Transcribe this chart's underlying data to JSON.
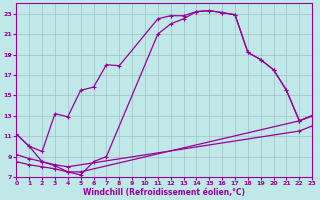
{
  "bg_color": "#c0e8e8",
  "line_color": "#990099",
  "grid_color": "#a0c0c0",
  "xlabel": "Windchill (Refroidissement éolien,°C)",
  "xlim": [
    0,
    23
  ],
  "ylim": [
    7,
    24
  ],
  "yticks": [
    7,
    9,
    11,
    13,
    15,
    17,
    19,
    21,
    23
  ],
  "xticks": [
    0,
    1,
    2,
    3,
    4,
    5,
    6,
    7,
    8,
    9,
    10,
    11,
    12,
    13,
    14,
    15,
    16,
    17,
    18,
    19,
    20,
    21,
    22,
    23
  ],
  "curve1_x": [
    0,
    1,
    2,
    3,
    4,
    5,
    6,
    7,
    8,
    11,
    12,
    13,
    14,
    15,
    16,
    17,
    18,
    19,
    20,
    21,
    22,
    23
  ],
  "curve1_y": [
    11.2,
    10.0,
    9.5,
    13.2,
    12.9,
    15.5,
    15.8,
    18.0,
    17.9,
    22.5,
    22.8,
    22.8,
    23.2,
    23.3,
    23.1,
    22.9,
    19.2,
    18.5,
    17.5,
    15.5,
    12.5,
    13.0
  ],
  "curve2_x": [
    0,
    1,
    2,
    3,
    4,
    5,
    6,
    7,
    11,
    12,
    13,
    14,
    15,
    16,
    17,
    18,
    19,
    20,
    21,
    22,
    23
  ],
  "curve2_y": [
    11.2,
    10.0,
    8.5,
    8.1,
    7.5,
    7.2,
    8.5,
    9.0,
    21.0,
    22.0,
    22.5,
    23.2,
    23.3,
    23.1,
    22.9,
    19.2,
    18.5,
    17.5,
    15.5,
    12.5,
    13.0
  ],
  "line1_x": [
    0,
    1,
    2,
    3,
    4,
    5,
    22,
    23
  ],
  "line1_y": [
    8.5,
    8.2,
    8.0,
    7.8,
    7.5,
    7.5,
    12.5,
    13.0
  ],
  "line2_x": [
    0,
    1,
    2,
    3,
    4,
    22,
    23
  ],
  "line2_y": [
    9.2,
    8.8,
    8.5,
    8.2,
    8.0,
    11.5,
    12.0
  ]
}
